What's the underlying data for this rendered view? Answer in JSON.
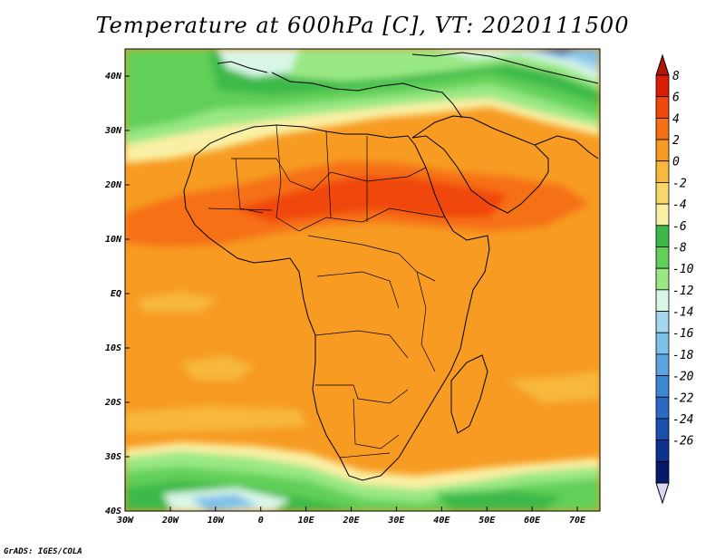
{
  "title": "Temperature at 600hPa [C], VT: 2020111500",
  "credit": "GrADS: IGES/COLA",
  "map": {
    "lon_range": [
      -30,
      75
    ],
    "lat_range": [
      -40,
      45
    ],
    "lon_ticks": [
      "30W",
      "20W",
      "10W",
      "0",
      "10E",
      "20E",
      "30E",
      "40E",
      "50E",
      "60E",
      "70E"
    ],
    "lat_ticks": [
      "40N",
      "30N",
      "20N",
      "10N",
      "EQ",
      "10S",
      "20S",
      "30S",
      "40S"
    ]
  },
  "colorbar": {
    "labels": [
      "8",
      "6",
      "4",
      "2",
      "0",
      "-2",
      "-4",
      "-6",
      "-8",
      "-10",
      "-12",
      "-14",
      "-16",
      "-18",
      "-20",
      "-22",
      "-24",
      "-26"
    ],
    "colors": [
      "#d81e05",
      "#f0470c",
      "#f66f12",
      "#f79b22",
      "#f7b83e",
      "#f8d76a",
      "#faf0a4",
      "#3cb94a",
      "#62d058",
      "#99e884",
      "#d9f7e7",
      "#a4d7ee",
      "#7ec0ea",
      "#5ba4e0",
      "#3d86d4",
      "#2a6ac4",
      "#1a4fb0",
      "#0e3290",
      "#08186a"
    ],
    "top_arrow": "#b41605",
    "bottom_arrow": "#d8d8f4"
  }
}
